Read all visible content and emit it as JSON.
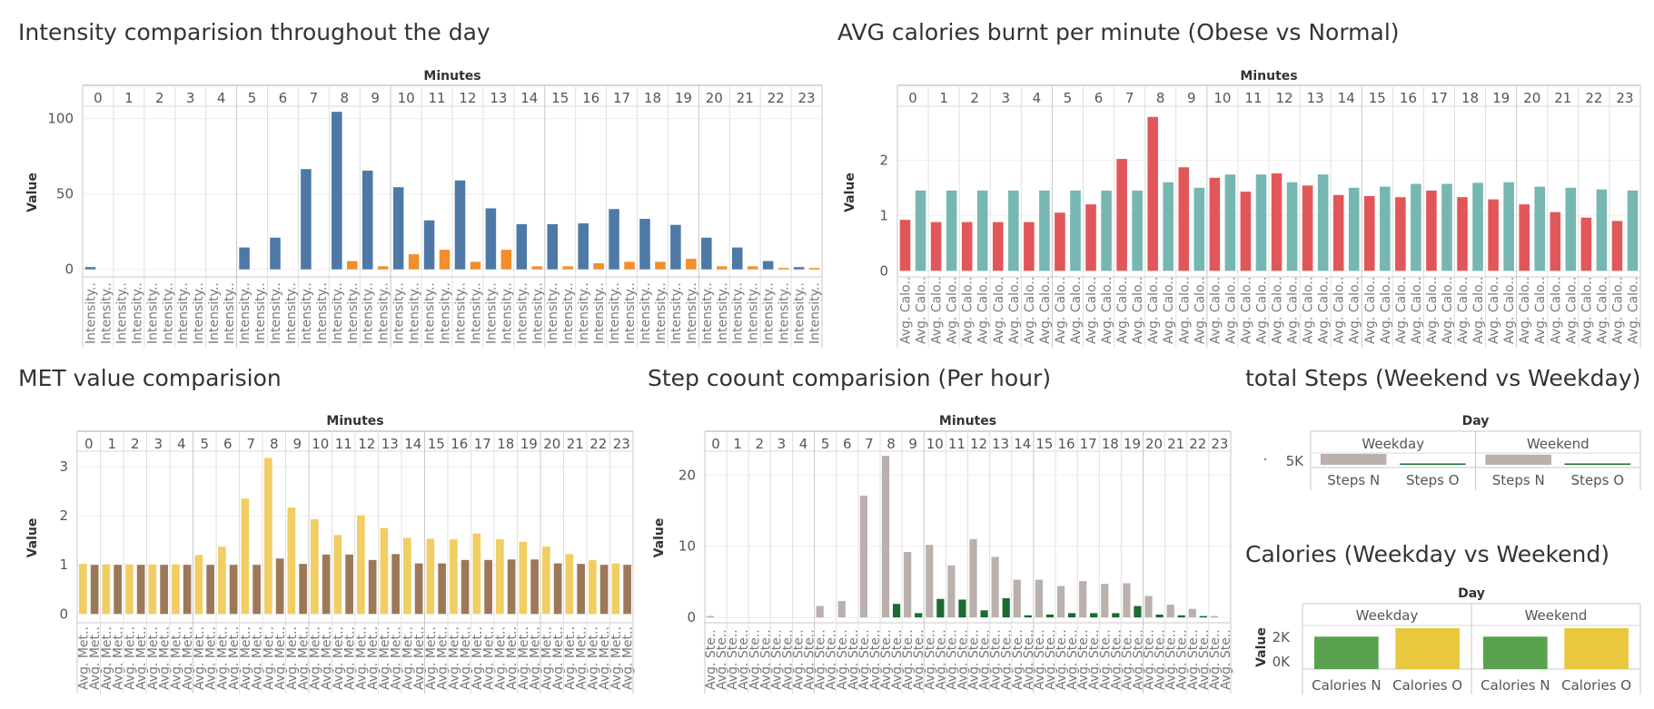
{
  "chart_data": [
    {
      "id": "intensity",
      "type": "bar",
      "title": "Intensity comparision throughout the day",
      "column_header": "Minutes",
      "columns": [
        "0",
        "1",
        "2",
        "3",
        "4",
        "5",
        "6",
        "7",
        "8",
        "9",
        "10",
        "11",
        "12",
        "13",
        "14",
        "15",
        "16",
        "17",
        "18",
        "19",
        "20",
        "21",
        "22",
        "23"
      ],
      "ylabel": "Value",
      "yticks": [
        0,
        50,
        100
      ],
      "ylim": [
        -5,
        107
      ],
      "bar_labels": [
        "Intensity..",
        "Intensity.."
      ],
      "series": [
        {
          "values": [
            1.5,
            0,
            0,
            0,
            0,
            14.5,
            21,
            66.5,
            104.5,
            65.5,
            54.5,
            32.5,
            59,
            40.5,
            30,
            30,
            30.5,
            40,
            33.5,
            29.5,
            21,
            14.5,
            5.5,
            1.5
          ],
          "color": "#4e79a7"
        },
        {
          "values": [
            0,
            0,
            0,
            0,
            0,
            0,
            0,
            0,
            5.5,
            2,
            10,
            13,
            5,
            13,
            2,
            2,
            4,
            5,
            5,
            7,
            2,
            2,
            0.5,
            0.5
          ],
          "color": "#f28e2b"
        }
      ]
    },
    {
      "id": "calories",
      "type": "bar",
      "title": "AVG calories burnt per minute (Obese vs Normal)",
      "column_header": "Minutes",
      "columns": [
        "0",
        "1",
        "2",
        "3",
        "4",
        "5",
        "6",
        "7",
        "8",
        "9",
        "10",
        "11",
        "12",
        "13",
        "14",
        "15",
        "16",
        "17",
        "18",
        "19",
        "20",
        "21",
        "22",
        "23"
      ],
      "ylabel": "Value",
      "yticks": [
        0,
        1,
        2
      ],
      "ylim": [
        -0.11,
        2.94
      ],
      "bar_labels": [
        "Avg. Calo..",
        "Avg. Calo.."
      ],
      "series": [
        {
          "values": [
            0.92,
            0.88,
            0.88,
            0.88,
            0.88,
            1.05,
            1.2,
            2.02,
            2.78,
            1.87,
            1.68,
            1.43,
            1.76,
            1.54,
            1.37,
            1.35,
            1.33,
            1.45,
            1.33,
            1.29,
            1.2,
            1.06,
            0.96,
            0.9
          ],
          "color": "#e15759"
        },
        {
          "values": [
            1.45,
            1.45,
            1.45,
            1.45,
            1.45,
            1.45,
            1.45,
            1.45,
            1.6,
            1.5,
            1.74,
            1.74,
            1.6,
            1.74,
            1.5,
            1.52,
            1.57,
            1.57,
            1.59,
            1.6,
            1.52,
            1.5,
            1.47,
            1.45
          ],
          "color": "#76b7b2"
        }
      ]
    },
    {
      "id": "met",
      "type": "bar",
      "title": "MET value comparision",
      "column_header": "Minutes",
      "columns": [
        "0",
        "1",
        "2",
        "3",
        "4",
        "5",
        "6",
        "7",
        "8",
        "9",
        "10",
        "11",
        "12",
        "13",
        "14",
        "15",
        "16",
        "17",
        "18",
        "19",
        "20",
        "21",
        "22",
        "23"
      ],
      "ylabel": "Value",
      "yticks": [
        0,
        1,
        2,
        3
      ],
      "ylim": [
        -0.18,
        3.28
      ],
      "bar_labels": [
        "Avg. Met..",
        "Avg. Met.."
      ],
      "series": [
        {
          "values": [
            1.02,
            1.01,
            1.01,
            1.01,
            1.01,
            1.2,
            1.37,
            2.35,
            3.18,
            2.17,
            1.93,
            1.61,
            2.01,
            1.75,
            1.55,
            1.53,
            1.52,
            1.64,
            1.52,
            1.47,
            1.37,
            1.22,
            1.1,
            1.03
          ],
          "color": "#f1ce63"
        },
        {
          "values": [
            1.0,
            1.0,
            1.0,
            1.0,
            1.0,
            1.0,
            1.0,
            1.0,
            1.13,
            1.02,
            1.21,
            1.21,
            1.1,
            1.22,
            1.03,
            1.03,
            1.1,
            1.1,
            1.11,
            1.11,
            1.03,
            1.02,
            1.0,
            1.0
          ],
          "color": "#9c7858"
        }
      ]
    },
    {
      "id": "steps",
      "type": "bar",
      "title": "Step coount comparision (Per hour)",
      "column_header": "Minutes",
      "columns": [
        "0",
        "1",
        "2",
        "3",
        "4",
        "5",
        "6",
        "7",
        "8",
        "9",
        "10",
        "11",
        "12",
        "13",
        "14",
        "15",
        "16",
        "17",
        "18",
        "19",
        "20",
        "21",
        "22",
        "23"
      ],
      "ylabel": "Value",
      "yticks": [
        0,
        10,
        20
      ],
      "ylim": [
        -0.75,
        23.1
      ],
      "bar_labels": [
        "Avg. Ste..",
        "Avg. Ste.."
      ],
      "series": [
        {
          "values": [
            0.2,
            0,
            0,
            0,
            0,
            1.6,
            2.3,
            17.1,
            22.7,
            9.2,
            10.2,
            7.3,
            11,
            8.5,
            5.3,
            5.3,
            4.4,
            5.1,
            4.7,
            4.8,
            3,
            1.8,
            1.2,
            0.2
          ],
          "color": "#bab0ac"
        },
        {
          "values": [
            0,
            0,
            0,
            0,
            0,
            0,
            0,
            0,
            1.9,
            0.6,
            2.6,
            2.5,
            1,
            2.7,
            0.3,
            0.4,
            0.6,
            0.6,
            0.6,
            1.6,
            0.4,
            0.3,
            0.1,
            0
          ],
          "color": "#1a6b32"
        }
      ]
    },
    {
      "id": "weekend_steps",
      "type": "bar",
      "title": "total Steps (Weekend vs Weekday)",
      "column_header": "Day",
      "columns": [
        "Weekday",
        "Weekend"
      ],
      "categories": [
        "Steps N",
        "Steps O",
        "Steps N",
        "Steps O"
      ],
      "ytick_label": "5K",
      "values": [
        8000,
        500,
        7500,
        500
      ],
      "colors": [
        "#bab0ac",
        "#1a6b32",
        "#bab0ac",
        "#1a6b32"
      ]
    },
    {
      "id": "weekend_calories",
      "type": "bar",
      "title": "Calories (Weekday vs Weekend)",
      "column_header": "Day",
      "columns": [
        "Weekday",
        "Weekend"
      ],
      "categories": [
        "Calories N",
        "Calories O",
        "Calories N",
        "Calories O"
      ],
      "ylabel": "Value",
      "yticks_labels": [
        "2K",
        "0K"
      ],
      "values": [
        2300,
        2900,
        2300,
        2900
      ],
      "colors": [
        "#59a14f",
        "#e9c83f",
        "#59a14f",
        "#e9c83f"
      ]
    }
  ]
}
